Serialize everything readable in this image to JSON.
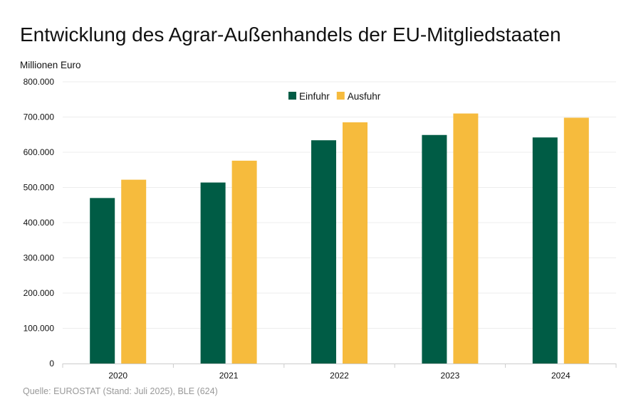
{
  "chart_data": {
    "type": "bar",
    "title": "Entwicklung des Agrar-Außenhandels der EU-Mitgliedstaaten",
    "ylabel": "Millionen Euro",
    "source": "Quelle: EUROSTAT (Stand: Juli 2025), BLE (624)",
    "categories": [
      "2020",
      "2021",
      "2022",
      "2023",
      "2024"
    ],
    "series": [
      {
        "name": "Einfuhr",
        "color": "#005c45",
        "values": [
          470000,
          514000,
          634000,
          649000,
          642000
        ]
      },
      {
        "name": "Ausfuhr",
        "color": "#f6bb3d",
        "values": [
          522000,
          576000,
          685000,
          710000,
          698000
        ]
      }
    ],
    "ylim": [
      0,
      800000
    ],
    "yticks": [
      0,
      100000,
      200000,
      300000,
      400000,
      500000,
      600000,
      700000,
      800000
    ],
    "ytick_labels": [
      "0",
      "100.000",
      "200.000",
      "300.000",
      "400.000",
      "500.000",
      "600.000",
      "700.000",
      "800.000"
    ],
    "grid": true,
    "legend_position": "top-center"
  }
}
